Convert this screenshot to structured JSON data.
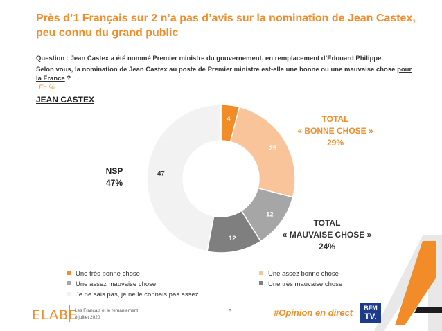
{
  "header": {
    "title": "Près d’1 Français sur 2 n’a pas d’avis sur la nomination de Jean Castex, peu connu du grand public",
    "question_line1": "Question : Jean Castex a été nommé Premier ministre du gouvernement, en remplacement d’Edouard Philippe.",
    "question_line2_a": "Selon vous, la nomination de Jean Castex au poste de Premier ministre est-elle une bonne ou une mauvaise chose ",
    "question_line2_u": "pour la France",
    "question_line2_b": " ?",
    "unit": "En %",
    "subject": "JEAN CASTEX"
  },
  "chart_data": {
    "type": "pie",
    "subtype": "donut",
    "categories": [
      "Une très bonne chose",
      "Une assez bonne chose",
      "Une assez mauvaise chose",
      "Une très mauvaise chose",
      "Je ne sais pas, je ne le connais pas assez"
    ],
    "values": [
      4,
      25,
      12,
      12,
      47
    ],
    "colors": [
      "#f28c28",
      "#f9c499",
      "#a6a6a6",
      "#7f7f7f",
      "#f2f2f2"
    ],
    "label_colors": [
      "#ffffff",
      "#ffffff",
      "#ffffff",
      "#ffffff",
      "#333333"
    ],
    "legend_position": "bottom"
  },
  "totals": {
    "bonne_line1": "TOTAL",
    "bonne_line2": "« BONNE CHOSE »",
    "bonne_value": "29%",
    "mauvaise_line1": "TOTAL",
    "mauvaise_line2": "« MAUVAISE CHOSE »",
    "mauvaise_value": "24%",
    "nsp_line1": "NSP",
    "nsp_value": "47%"
  },
  "footer": {
    "logo": "ELABE",
    "sub1": "Les Français et le remaniement",
    "sub2": "8 juillet 2020",
    "page": "6",
    "hashtag": "#Opinion en direct",
    "partner_line1": "BFM",
    "partner_line2": "TV."
  }
}
